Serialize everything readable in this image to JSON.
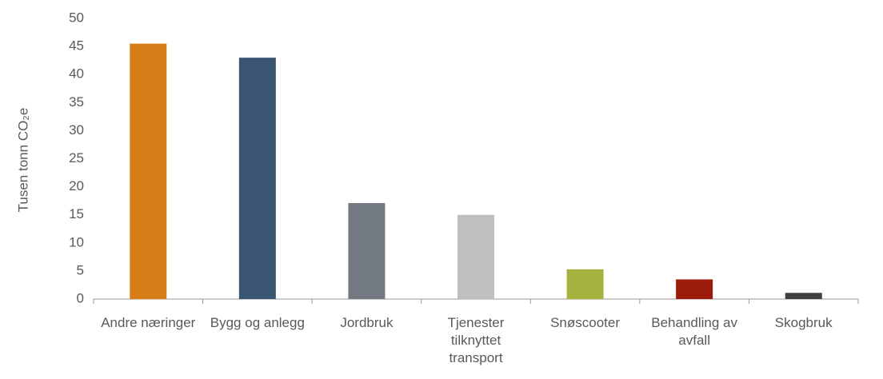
{
  "chart_data": {
    "type": "bar",
    "y_label": "Tusen tonn CO₂e",
    "categories": [
      "Andre næringer",
      "Bygg og anlegg",
      "Jordbruk",
      "Tjenester tilknyttet transport",
      "Snøscooter",
      "Behandling av avfall",
      "Skogbruk"
    ],
    "values": [
      45.5,
      43,
      17.1,
      15,
      5.3,
      3.5,
      1.1
    ],
    "colors": [
      "#d67d18",
      "#3a5572",
      "#737a82",
      "#bfbfbf",
      "#a5b33e",
      "#9b1a0b",
      "#404040"
    ],
    "ylim": [
      0,
      50
    ],
    "yticks": [
      0,
      5,
      10,
      15,
      20,
      25,
      30,
      35,
      40,
      45,
      50
    ],
    "grid": false
  }
}
